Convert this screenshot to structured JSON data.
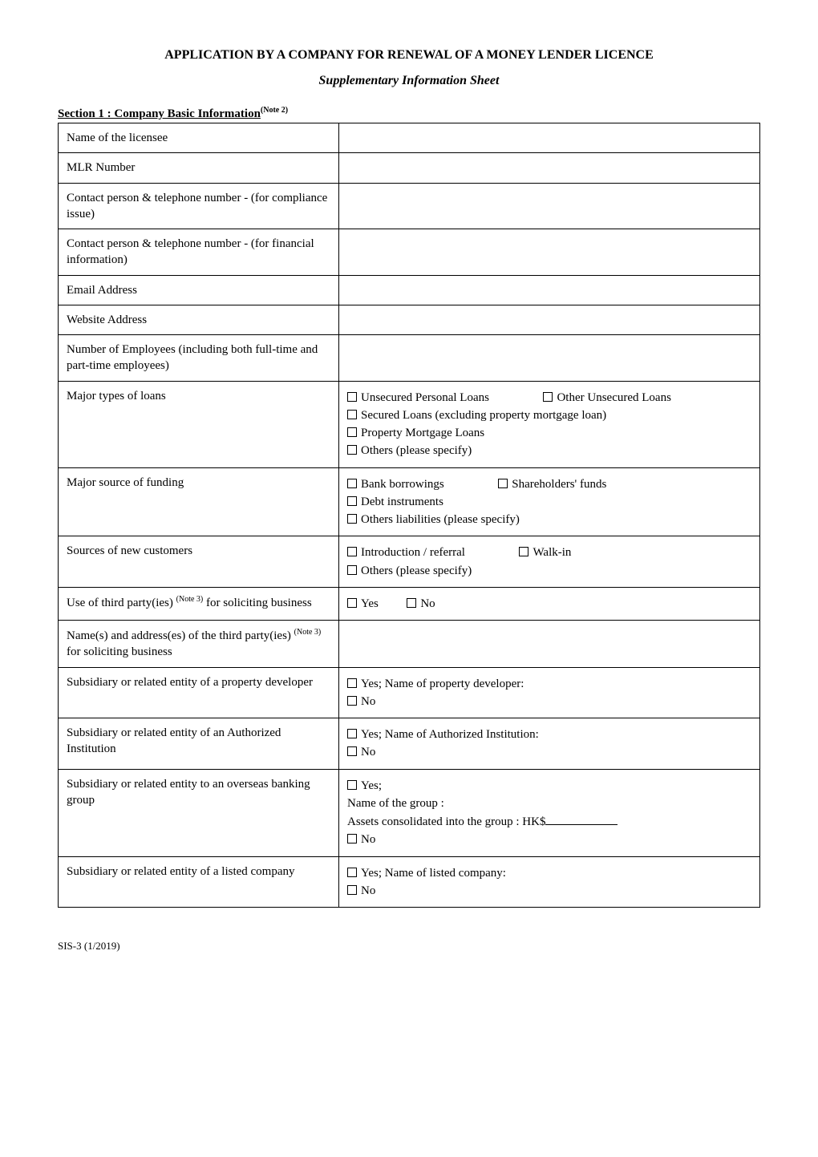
{
  "header": {
    "title": "APPLICATION BY A COMPANY FOR RENEWAL OF A MONEY LENDER LICENCE",
    "subtitle": "Supplementary Information Sheet"
  },
  "section1": {
    "heading": "Section 1 :  Company Basic Information",
    "heading_sup": "(Note 2)",
    "rows": {
      "licensee_label": "Name of the licensee",
      "mlr_label": "MLR Number",
      "contact_compliance_label": "Contact person & telephone number - (for compliance issue)",
      "contact_financial_label": "Contact person & telephone number - (for financial information)",
      "email_label": "Email Address",
      "website_label": "Website Address",
      "employees_label": "Number of Employees (including both full-time and part-time employees)",
      "major_loans_label": "Major types of loans",
      "major_funding_label": "Major source of funding",
      "sources_customers_label": "Sources of new customers",
      "third_party_use_label_pre": "Use of third party(ies) ",
      "third_party_use_sup": "(Note 3)",
      "third_party_use_label_post": " for soliciting business",
      "third_party_names_label_pre": "Name(s) and address(es) of the third party(ies) ",
      "third_party_names_sup": "(Note 3)",
      "third_party_names_label_post": " for soliciting business",
      "sub_property_label": "Subsidiary or related entity of a property developer",
      "sub_ai_label": "Subsidiary or related entity of an Authorized Institution",
      "sub_overseas_label": "Subsidiary or related entity to an overseas banking group",
      "sub_listed_label": "Subsidiary or related entity of a listed company"
    },
    "options": {
      "loans_unsecured_personal": "Unsecured Personal Loans",
      "loans_other_unsecured": "Other Unsecured Loans",
      "loans_secured_excl_mortgage": "Secured Loans (excluding property mortgage loan)",
      "loans_property_mortgage": "Property Mortgage Loans",
      "loans_others_specify": "Others (please specify)",
      "funding_bank_borrowings": "Bank borrowings",
      "funding_shareholders": "Shareholders' funds",
      "funding_debt": "Debt instruments",
      "funding_others_specify": "Others liabilities (please specify)",
      "src_introduction": "Introduction / referral",
      "src_walkin": "Walk-in",
      "src_others_specify": "Others (please specify)",
      "yes": "Yes",
      "no": "No",
      "yes_property_dev": "Yes; Name of property developer:",
      "yes_ai": "Yes; Name of Authorized Institution:",
      "yes_semicolon": "Yes;",
      "group_name_label": "Name of the group :",
      "assets_consolidated_label": "Assets consolidated into the group : HK$",
      "yes_listed": "Yes; Name of listed company:"
    }
  },
  "footer": {
    "code": "SIS-3 (1/2019)"
  }
}
